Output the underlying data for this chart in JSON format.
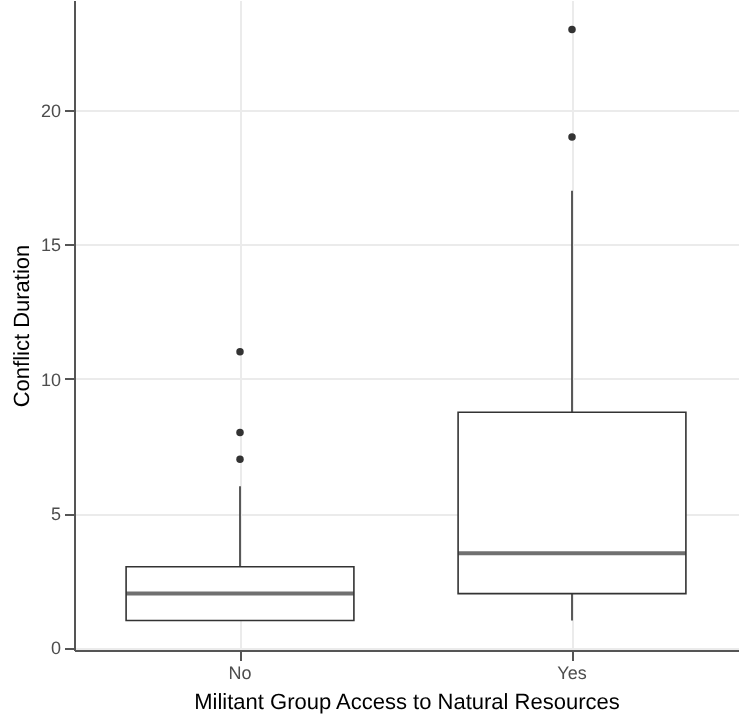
{
  "chart_data": {
    "type": "box",
    "xlabel": "Militant Group Access to Natural Resources",
    "ylabel": "Conflict Duration",
    "categories": [
      "No",
      "Yes"
    ],
    "boxes": [
      {
        "low": 1,
        "q1": 1,
        "median": 2,
        "q3": 3,
        "high": 6,
        "outliers": [
          7,
          8,
          11
        ]
      },
      {
        "low": 1,
        "q1": 2,
        "median": 3.5,
        "q3": 8.75,
        "high": 17,
        "outliers": [
          19,
          23
        ]
      }
    ],
    "ylim": [
      -0.1,
      24.1
    ],
    "yticks": [
      0,
      5,
      10,
      15,
      20
    ],
    "grid": true
  }
}
